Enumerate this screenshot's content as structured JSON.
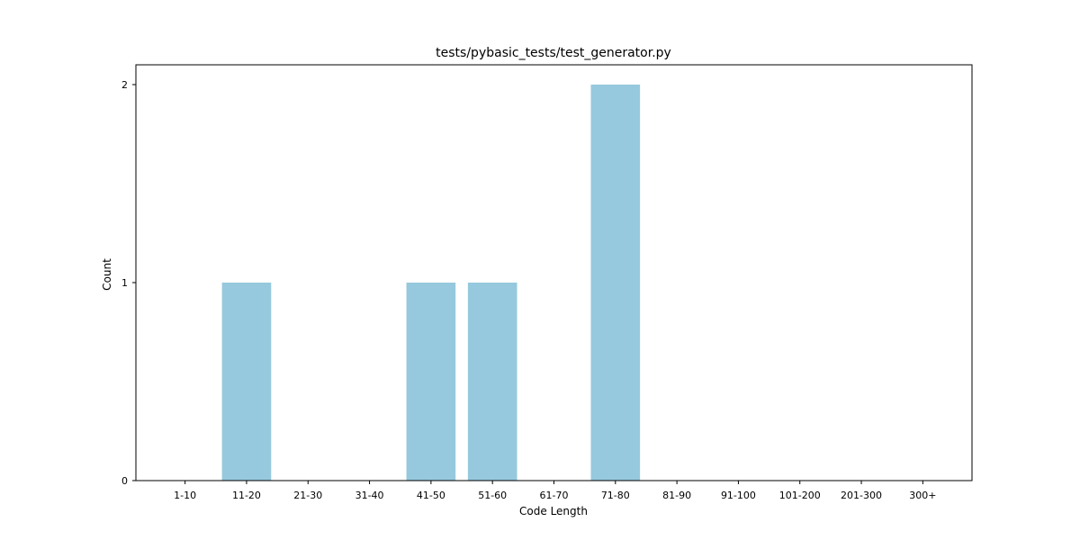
{
  "chart_data": {
    "type": "bar",
    "title": "tests/pybasic_tests/test_generator.py",
    "xlabel": "Code Length",
    "ylabel": "Count",
    "categories": [
      "1-10",
      "11-20",
      "21-30",
      "31-40",
      "41-50",
      "51-60",
      "61-70",
      "71-80",
      "81-90",
      "91-100",
      "101-200",
      "201-300",
      "300+"
    ],
    "values": [
      0,
      1,
      0,
      0,
      1,
      1,
      0,
      2,
      0,
      0,
      0,
      0,
      0
    ],
    "ylim": [
      0,
      2.1
    ],
    "yticks": [
      0,
      1,
      2
    ],
    "grid": false,
    "bar_color": "#96c9dd"
  }
}
